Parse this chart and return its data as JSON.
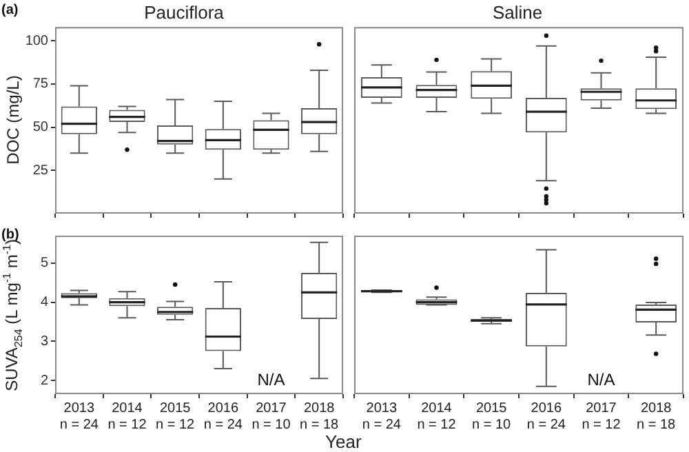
{
  "chart_data": [
    {
      "type": "box",
      "title": "Pauciflora",
      "ylabel": "DOC (mg/L)",
      "annotations": [
        "(a)"
      ],
      "categories": [
        "2013",
        "2014",
        "2015",
        "2016",
        "2017",
        "2018"
      ],
      "ylim": [
        0,
        108
      ],
      "yticks": [
        25,
        50,
        75,
        100
      ],
      "tick_labels": "y",
      "series": [
        {
          "color": "#595959",
          "boxes": [
            {
              "low": 35,
              "q1": 46,
              "median": 52,
              "q3": 62,
              "high": 74
            },
            {
              "low": 47,
              "q1": 53,
              "median": 56,
              "q3": 60,
              "high": 62,
              "outliers": [
                37
              ]
            },
            {
              "low": 35,
              "q1": 40,
              "median": 42,
              "q3": 51,
              "high": 66
            },
            {
              "low": 20,
              "q1": 37,
              "median": 42.5,
              "q3": 49,
              "high": 65
            },
            {
              "low": 35,
              "q1": 37,
              "median": 48.5,
              "q3": 54,
              "high": 58
            },
            {
              "low": 36,
              "q1": 46,
              "median": 53,
              "q3": 61,
              "high": 83,
              "outliers": [
                98
              ]
            }
          ]
        }
      ]
    },
    {
      "type": "box",
      "title": "Saline",
      "categories": [
        "2013",
        "2014",
        "2015",
        "2016",
        "2017",
        "2018"
      ],
      "ylim": [
        0,
        108
      ],
      "yticks": [
        25,
        50,
        75,
        100
      ],
      "tick_labels": false,
      "series": [
        {
          "color": "#595959",
          "boxes": [
            {
              "low": 64,
              "q1": 67,
              "median": 73,
              "q3": 79,
              "high": 86
            },
            {
              "low": 59,
              "q1": 67,
              "median": 71.5,
              "q3": 74.5,
              "high": 82,
              "outliers": [
                89
              ]
            },
            {
              "low": 58,
              "q1": 66.5,
              "median": 74,
              "q3": 82.5,
              "high": 89.5
            },
            {
              "low": 19,
              "q1": 47,
              "median": 59,
              "q3": 67,
              "high": 97,
              "outliers": [
                103,
                14.5,
                10,
                8,
                6
              ]
            },
            {
              "low": 61,
              "q1": 65.5,
              "median": 70.5,
              "q3": 72.5,
              "high": 81.5,
              "outliers": [
                88.5
              ]
            },
            {
              "low": 58,
              "q1": 60.5,
              "median": 65.5,
              "q3": 72.5,
              "high": 90.5,
              "outliers": [
                96,
                94
              ]
            }
          ]
        }
      ]
    },
    {
      "type": "box",
      "ylabel": "SUVA$_{254}$ (L mg$^{-1}$ m$^{-1}$)",
      "xlabel": "Year",
      "annotations": [
        "(b)",
        "N/A"
      ],
      "categories": [
        "2013\nn = 24",
        "2014\nn = 12",
        "2015\nn = 12",
        "2016\nn = 24",
        "2017\nn = 10",
        "2018\nn = 18"
      ],
      "ylim": [
        1.65,
        5.7
      ],
      "yticks": [
        2,
        3,
        4,
        5
      ],
      "series": [
        {
          "color": "#595959",
          "boxes": [
            {
              "low": 3.93,
              "q1": 4.1,
              "median": 4.15,
              "q3": 4.23,
              "high": 4.3
            },
            {
              "low": 3.6,
              "q1": 3.9,
              "median": 4.0,
              "q3": 4.1,
              "high": 4.27
            },
            {
              "low": 3.55,
              "q1": 3.68,
              "median": 3.75,
              "q3": 3.88,
              "high": 4.02,
              "outliers": [
                4.45
              ]
            },
            {
              "low": 2.3,
              "q1": 2.75,
              "median": 3.12,
              "q3": 3.85,
              "high": 4.52
            },
            null,
            {
              "low": 2.05,
              "q1": 3.57,
              "median": 4.25,
              "q3": 4.75,
              "high": 5.53
            }
          ]
        }
      ]
    },
    {
      "type": "box",
      "annotations": [
        "N/A"
      ],
      "categories": [
        "2013\nn = 24",
        "2014\nn = 12",
        "2015\nn = 10",
        "2016\nn = 24",
        "2017\nn = 12",
        "2018\nn = 18"
      ],
      "ylim": [
        1.65,
        5.7
      ],
      "yticks": [
        2,
        3,
        4,
        5
      ],
      "tick_labels": "x",
      "series": [
        {
          "color": "#595959",
          "boxes": [
            {
              "low": 4.25,
              "q1": 4.25,
              "median": 4.28,
              "q3": 4.31,
              "high": 4.31
            },
            {
              "low": 3.93,
              "q1": 3.93,
              "median": 4.0,
              "q3": 4.07,
              "high": 4.13,
              "outliers": [
                4.37
              ]
            },
            {
              "low": 3.45,
              "q1": 3.5,
              "median": 3.53,
              "q3": 3.57,
              "high": 3.6
            },
            {
              "low": 1.85,
              "q1": 2.87,
              "median": 3.94,
              "q3": 4.24,
              "high": 5.34
            },
            null,
            {
              "low": 3.16,
              "q1": 3.48,
              "median": 3.81,
              "q3": 3.94,
              "high": 3.99,
              "outliers": [
                5.11,
                4.98,
                2.68
              ]
            }
          ]
        }
      ]
    }
  ]
}
